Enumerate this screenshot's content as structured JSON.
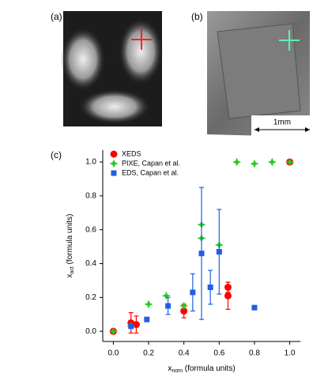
{
  "panels": {
    "a": "(a)",
    "b": "(b)",
    "c": "(c)",
    "scale_bar": "1mm"
  },
  "chart_data": {
    "type": "scatter",
    "xlabel": {
      "main": "x",
      "sub": "nom",
      "rest": " (formula units)"
    },
    "ylabel": {
      "main": "x",
      "sub": "act",
      "rest": " (formula units)"
    },
    "xlim": [
      -0.06,
      1.06
    ],
    "ylim": [
      -0.06,
      1.07
    ],
    "xticks": [
      {
        "value": 0,
        "label": "0.0"
      },
      {
        "value": 0.2,
        "label": "0.2"
      },
      {
        "value": 0.4,
        "label": "0.4"
      },
      {
        "value": 0.6,
        "label": "0.6"
      },
      {
        "value": 0.8,
        "label": "0.8"
      },
      {
        "value": 1,
        "label": "1.0"
      }
    ],
    "yticks": [
      {
        "value": 0,
        "label": "0.0"
      },
      {
        "value": 0.2,
        "label": "0.2"
      },
      {
        "value": 0.4,
        "label": "0.4"
      },
      {
        "value": 0.6,
        "label": "0.6"
      },
      {
        "value": 0.8,
        "label": "0.8"
      },
      {
        "value": 1,
        "label": "1.0"
      }
    ],
    "legend": "upper left",
    "series": [
      {
        "name": "XEDS",
        "color": "#ff0000",
        "marker": "circle",
        "x": [
          0,
          0.1,
          0.13,
          0.4,
          0.65,
          0.65,
          1.0
        ],
        "values": [
          0,
          0.05,
          0.04,
          0.12,
          0.26,
          0.21,
          1.0
        ],
        "errors": [
          null,
          0.06,
          0.05,
          0.04,
          0.03,
          0.08,
          null
        ]
      },
      {
        "name": "PIXE, Capan et al.",
        "color": "#22cc22",
        "marker": "star",
        "x": [
          0,
          0.1,
          0.2,
          0.3,
          0.4,
          0.5,
          0.5,
          0.6,
          0.7,
          0.8,
          0.9,
          1.0
        ],
        "values": [
          0,
          0.03,
          0.16,
          0.21,
          0.15,
          0.63,
          0.55,
          0.51,
          1.0,
          0.99,
          1.0,
          1.0
        ],
        "errors": [
          null,
          null,
          null,
          null,
          null,
          null,
          null,
          null,
          null,
          null,
          null,
          null
        ]
      },
      {
        "name": "EDS, Capan et al.",
        "color": "#1f5fe6",
        "marker": "square",
        "x": [
          0.1,
          0.19,
          0.31,
          0.45,
          0.5,
          0.55,
          0.6,
          0.8
        ],
        "values": [
          0.03,
          0.07,
          0.15,
          0.23,
          0.46,
          0.26,
          0.47,
          0.14
        ],
        "errors": [
          null,
          null,
          0.05,
          0.11,
          0.39,
          0.1,
          0.25,
          null
        ]
      }
    ]
  }
}
